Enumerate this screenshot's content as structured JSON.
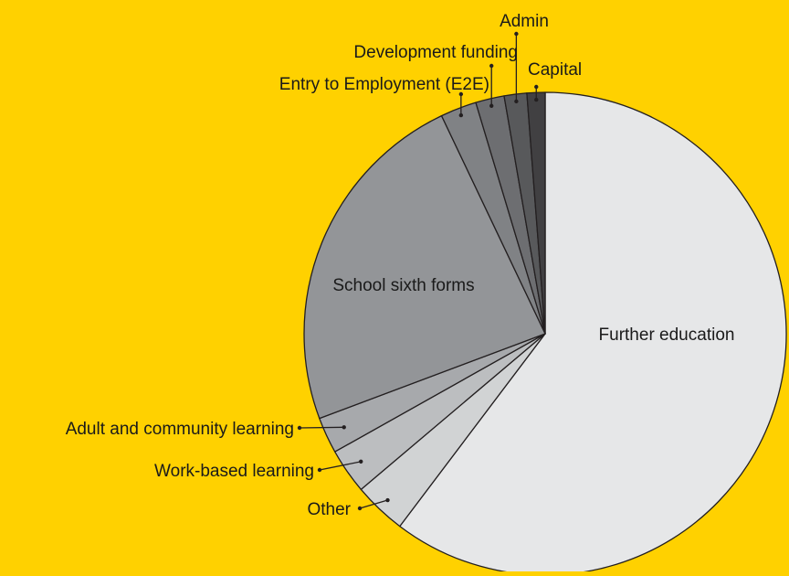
{
  "chart_data": {
    "type": "pie",
    "title": "",
    "start_angle_deg": 0,
    "direction": "clockwise",
    "slices": [
      {
        "label": "Further education",
        "value": 59.7,
        "color": "#E6E7E8"
      },
      {
        "label": "Other",
        "value": 3.5,
        "color": "#D1D3D4"
      },
      {
        "label": "Work-based learning",
        "value": 3.0,
        "color": "#BCBEC0"
      },
      {
        "label": "Adult and community learning",
        "value": 2.4,
        "color": "#A7A9AC"
      },
      {
        "label": "School sixth forms",
        "value": 23.4,
        "color": "#939598"
      },
      {
        "label": "Entry to Employment (E2E)",
        "value": 2.4,
        "color": "#808285"
      },
      {
        "label": "Development funding",
        "value": 1.9,
        "color": "#6D6E71"
      },
      {
        "label": "Admin",
        "value": 1.5,
        "color": "#58595B"
      },
      {
        "label": "Capital",
        "value": 1.2,
        "color": "#414042"
      }
    ],
    "legend": "none"
  }
}
